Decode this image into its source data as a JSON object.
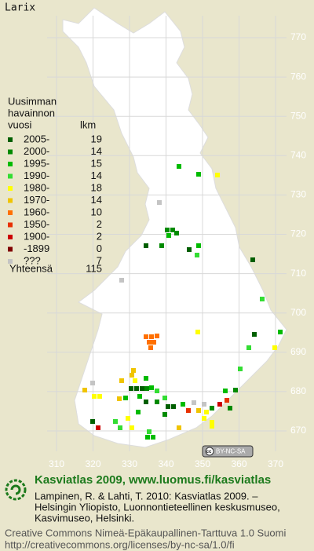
{
  "map": {
    "title": "Larix",
    "legend": {
      "header": [
        "Uusimman",
        "havainnon",
        "vuosi"
      ],
      "count_header": "lkm",
      "rows": [
        {
          "label": "2005-",
          "count": 19,
          "color": "#005f00"
        },
        {
          "label": "2000-",
          "count": 14,
          "color": "#008a00"
        },
        {
          "label": "1995-",
          "count": 15,
          "color": "#00bb00"
        },
        {
          "label": "1990-",
          "count": 14,
          "color": "#33dd33"
        },
        {
          "label": "1980-",
          "count": 18,
          "color": "#ffff00"
        },
        {
          "label": "1970-",
          "count": 14,
          "color": "#f0c400"
        },
        {
          "label": "1960-",
          "count": 10,
          "color": "#ff7000"
        },
        {
          "label": "1950-",
          "count": 2,
          "color": "#e83000"
        },
        {
          "label": "1900-",
          "count": 2,
          "color": "#cc0000"
        },
        {
          "label": "-1899",
          "count": 0,
          "color": "#800000"
        },
        {
          "label": "???",
          "count": 7,
          "color": "#c4c4c4"
        }
      ],
      "total_label": "Yhteensä",
      "total": 115
    },
    "y_ticks": [
      770,
      760,
      750,
      740,
      730,
      720,
      710,
      700,
      690,
      680,
      670
    ],
    "x_ticks": [
      310,
      320,
      330,
      340,
      350,
      360,
      370
    ],
    "cc_badge": "BY-NC-SA"
  },
  "footer": {
    "heading": "Kasviatlas 2009, www.luomus.fi/kasviatlas",
    "citation": [
      "Lampinen, R. & Lahti, T. 2010: Kasviatlas 2009. –",
      "Helsingin Yliopisto, Luonnontieteellinen keskusmuseo,",
      "Kasvimuseo, Helsinki."
    ],
    "license": [
      "Creative Commons Nimeä-Epäkaupallinen-Tarttuva 1.0 Suomi",
      "http://creativecommons.org/licenses/by-nc-sa/1.0/fi"
    ]
  }
}
